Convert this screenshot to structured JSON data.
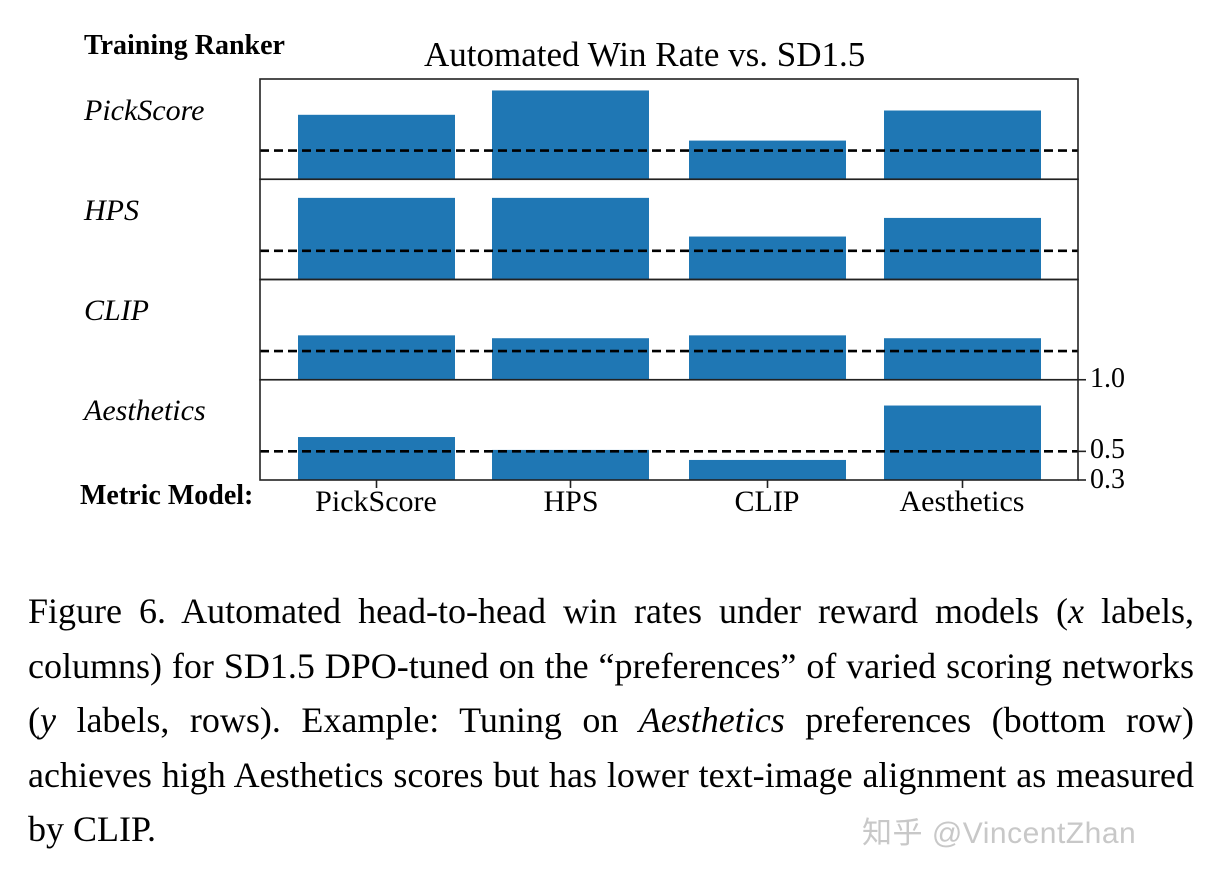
{
  "figure": {
    "ranker_heading": "Training Ranker",
    "title": "Automated Win Rate vs. SD1.5",
    "metric_heading": "Metric Model:",
    "row_labels": [
      "PickScore",
      "HPS",
      "CLIP",
      "Aesthetics"
    ],
    "column_labels": [
      "PickScore",
      "HPS",
      "CLIP",
      "Aesthetics"
    ],
    "y_ticks": [
      "1.0",
      "0.5",
      "0.3"
    ],
    "bar_color": "#1f77b4",
    "baseline_color": "#000000"
  },
  "chart_data": {
    "type": "bar",
    "layout": "small-multiples grid (4 rows x 4 bars), shared y-axis on right",
    "title": "Automated Win Rate vs. SD1.5",
    "row_axis_label": "Training Ranker",
    "xlabel": "Metric Model:",
    "ylabel": "",
    "categories": [
      "PickScore",
      "HPS",
      "CLIP",
      "Aesthetics"
    ],
    "ylim": [
      0.3,
      1.0
    ],
    "y_ticks": [
      0.3,
      0.5,
      1.0
    ],
    "baseline": 0.5,
    "baseline_style": "dashed",
    "grid": false,
    "legend": null,
    "series": [
      {
        "name": "PickScore",
        "values": [
          0.75,
          0.92,
          0.57,
          0.78
        ]
      },
      {
        "name": "HPS",
        "values": [
          0.87,
          0.87,
          0.6,
          0.73
        ]
      },
      {
        "name": "CLIP",
        "values": [
          0.61,
          0.59,
          0.61,
          0.59
        ]
      },
      {
        "name": "Aesthetics",
        "values": [
          0.6,
          0.51,
          0.44,
          0.82
        ]
      }
    ]
  },
  "caption": {
    "label": "Figure 6.",
    "line1": "Automated head-to-head win rates under reward models",
    "line2a": "(",
    "line2_var": "x",
    "line2b": " labels, columns) for SD1.5 DPO-tuned on the “preferences”",
    "line3a": "of varied scoring networks (",
    "line3_var": "y",
    "line3b": " labels, rows).  Example: Tuning",
    "line4a": "on ",
    "line4_em": "Aesthetics",
    "line4b": " preferences (bottom row) achieves high Aesthetics",
    "line5": "scores but has lower text-image alignment as measured by CLIP."
  },
  "watermark": "知乎 @VincentZhan"
}
